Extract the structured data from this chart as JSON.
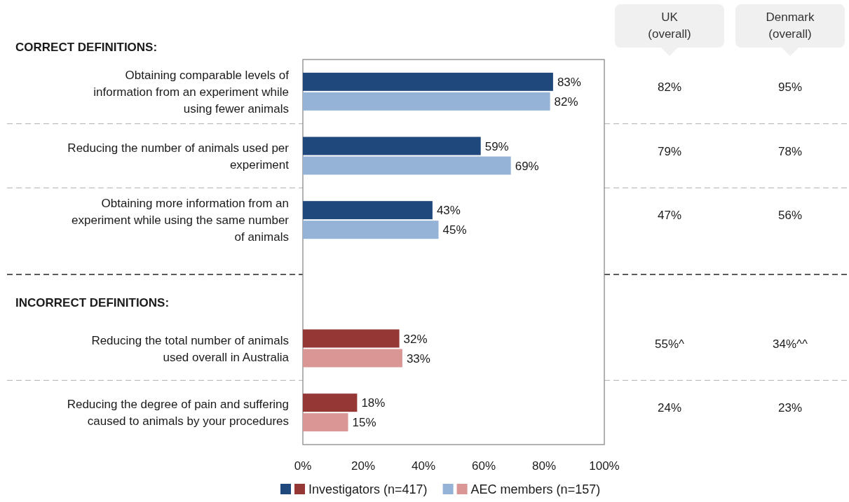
{
  "chart_data": [
    {
      "type": "bar",
      "orientation": "horizontal",
      "categories": [
        "Obtaining comparable levels of information from an experiment while using fewer animals",
        "Reducing the number of animals used per experiment",
        "Obtaining more information from an experiment while using the same number of animals",
        null,
        "Reducing the total number of animals used overall in Australia",
        "Reducing the degree of pain and suffering caused to animals by your procedures"
      ],
      "series": [
        {
          "name": "Investigators (n=417)",
          "colors": [
            "#1f497d",
            "#1f497d",
            "#1f497d",
            null,
            "#953735",
            "#953735"
          ],
          "values": [
            83,
            59,
            43,
            null,
            32,
            18
          ],
          "value_labels": [
            "83%",
            "59%",
            "43%",
            null,
            "32%",
            "18%"
          ]
        },
        {
          "name": "AEC members (n=157)",
          "colors": [
            "#95b3d7",
            "#95b3d7",
            "#95b3d7",
            null,
            "#d99694",
            "#d99694"
          ],
          "values": [
            82,
            69,
            45,
            null,
            33,
            15
          ],
          "value_labels": [
            "82%",
            "69%",
            "45%",
            null,
            "33%",
            "15%"
          ]
        }
      ],
      "xlim": [
        0,
        100
      ],
      "xticks": [
        {
          "value": 0,
          "label": "0%"
        },
        {
          "value": 20,
          "label": "20%"
        },
        {
          "value": 40,
          "label": "40%"
        },
        {
          "value": 60,
          "label": "60%"
        },
        {
          "value": 80,
          "label": "80%"
        },
        {
          "value": 100,
          "label": "100%"
        }
      ],
      "annotations": [
        "CORRECT DEFINITIONS:",
        "INCORRECT DEFINITIONS:"
      ],
      "legend": "bottom"
    },
    {
      "type": "other",
      "categories": [
        "UK (overall)",
        "Denmark (overall)"
      ],
      "annotations": [
        "82%",
        "95%",
        "79%",
        "78%",
        "47%",
        "56%",
        "55%^",
        "34%^^",
        "24%",
        "23%"
      ]
    }
  ]
}
